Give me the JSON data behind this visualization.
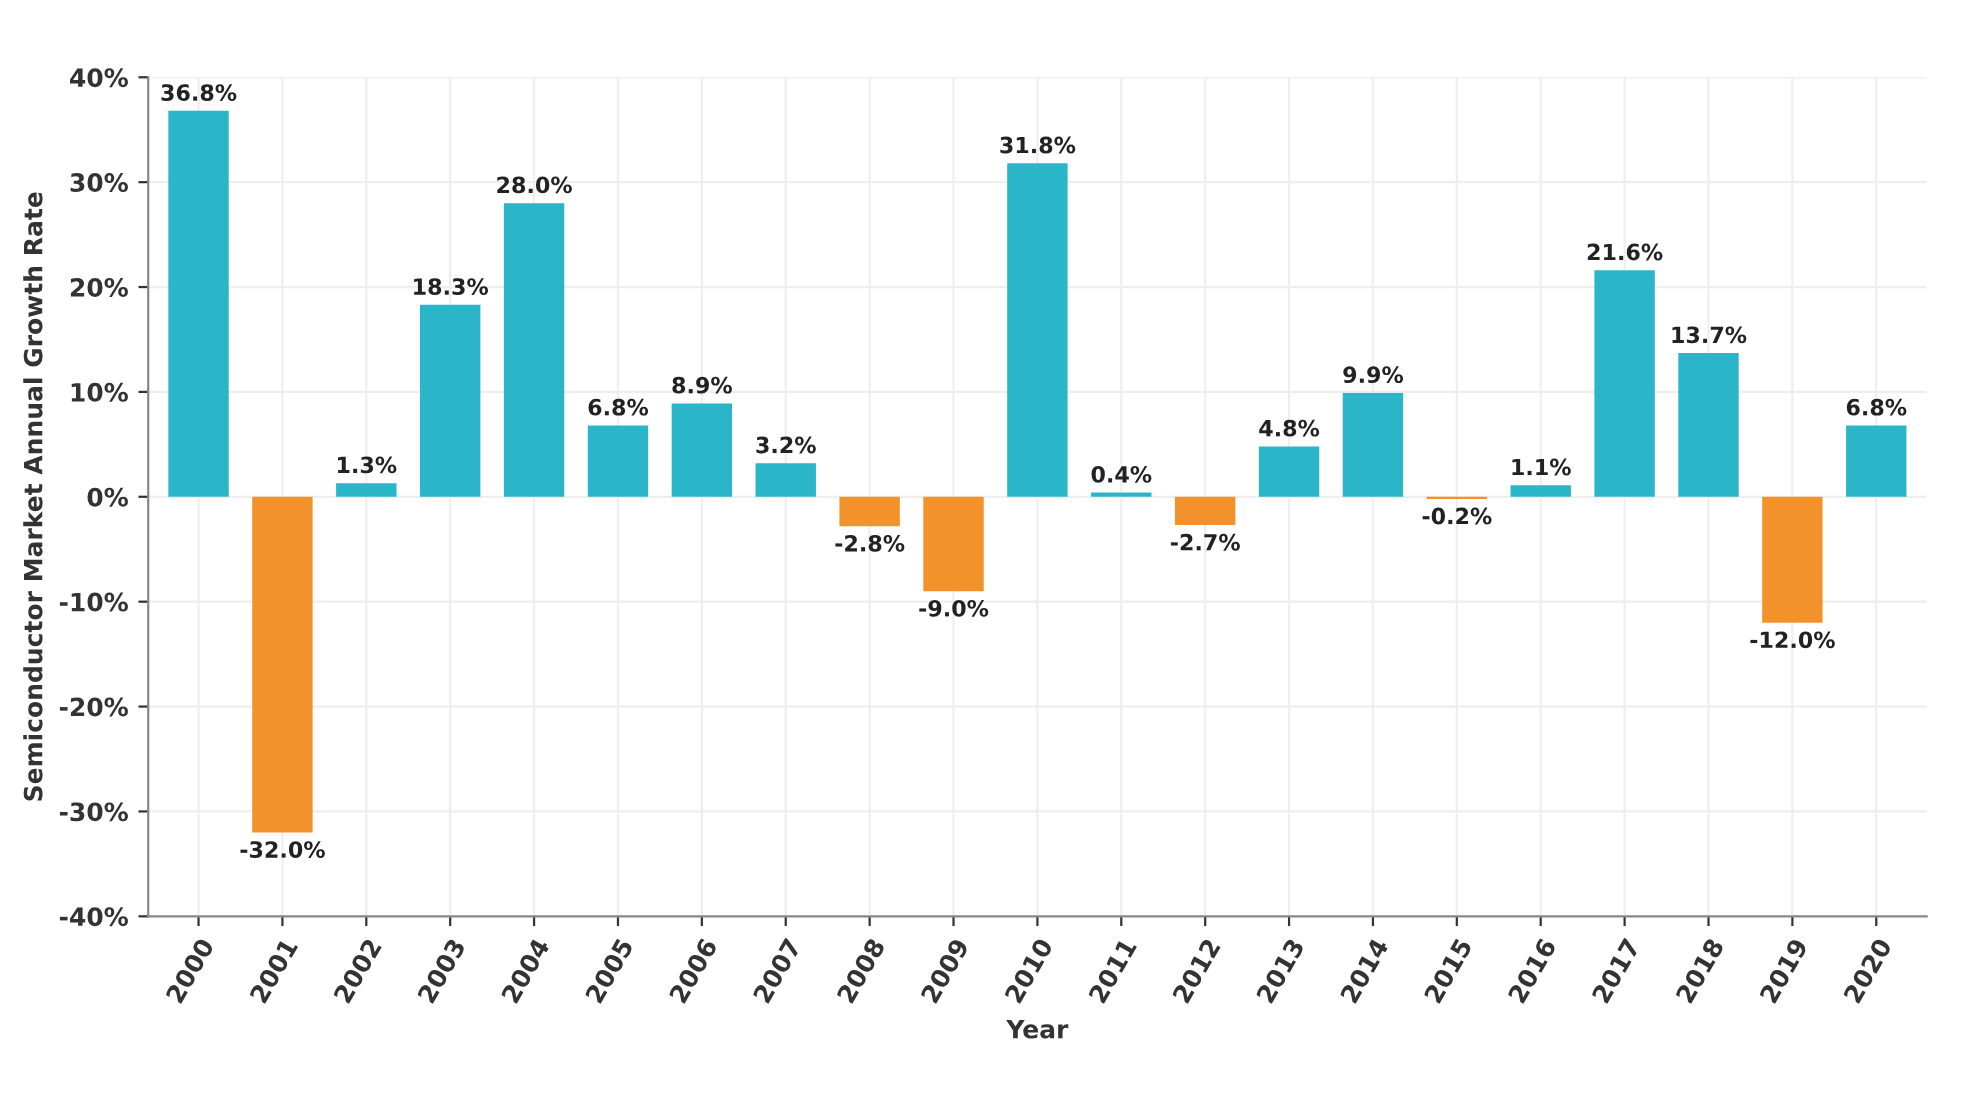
{
  "chart_data": {
    "type": "bar",
    "xlabel": "Year",
    "ylabel": "Semiconductor Market Annual Growth Rate",
    "categories": [
      "2000",
      "2001",
      "2002",
      "2003",
      "2004",
      "2005",
      "2006",
      "2007",
      "2008",
      "2009",
      "2010",
      "2011",
      "2012",
      "2013",
      "2014",
      "2015",
      "2016",
      "2017",
      "2018",
      "2019",
      "2020"
    ],
    "values": [
      36.8,
      -32.0,
      1.3,
      18.3,
      28.0,
      6.8,
      8.9,
      3.2,
      -2.8,
      -9.0,
      31.8,
      0.4,
      -2.7,
      4.8,
      9.9,
      -0.2,
      1.1,
      21.6,
      13.7,
      -12.0,
      6.8
    ],
    "colors": [
      "#2bb5c9",
      "#f3922b",
      "#2bb5c9",
      "#2bb5c9",
      "#2bb5c9",
      "#2bb5c9",
      "#2bb5c9",
      "#2bb5c9",
      "#f3922b",
      "#f3922b",
      "#2bb5c9",
      "#2bb5c9",
      "#f3922b",
      "#2bb5c9",
      "#2bb5c9",
      "#f3922b",
      "#2bb5c9",
      "#2bb5c9",
      "#2bb5c9",
      "#f3922b",
      "#2bb5c9"
    ],
    "value_labels": [
      "36.8%",
      "-32.0%",
      "1.3%",
      "18.3%",
      "28.0%",
      "6.8%",
      "8.9%",
      "3.2%",
      "-2.8%",
      "-9.0%",
      "31.8%",
      "0.4%",
      "-2.7%",
      "4.8%",
      "9.9%",
      "-0.2%",
      "1.1%",
      "21.6%",
      "13.7%",
      "-12.0%",
      "6.8%"
    ],
    "ylim": [
      -40,
      40
    ],
    "yticks": [
      {
        "value": -40,
        "label": "-40%"
      },
      {
        "value": -30,
        "label": "-30%"
      },
      {
        "value": -20,
        "label": "-20%"
      },
      {
        "value": -10,
        "label": "-10%"
      },
      {
        "value": 0,
        "label": "0%"
      },
      {
        "value": 10,
        "label": "10%"
      },
      {
        "value": 20,
        "label": "20%"
      },
      {
        "value": 30,
        "label": "30%"
      },
      {
        "value": 40,
        "label": "40%"
      }
    ],
    "grid": true
  }
}
